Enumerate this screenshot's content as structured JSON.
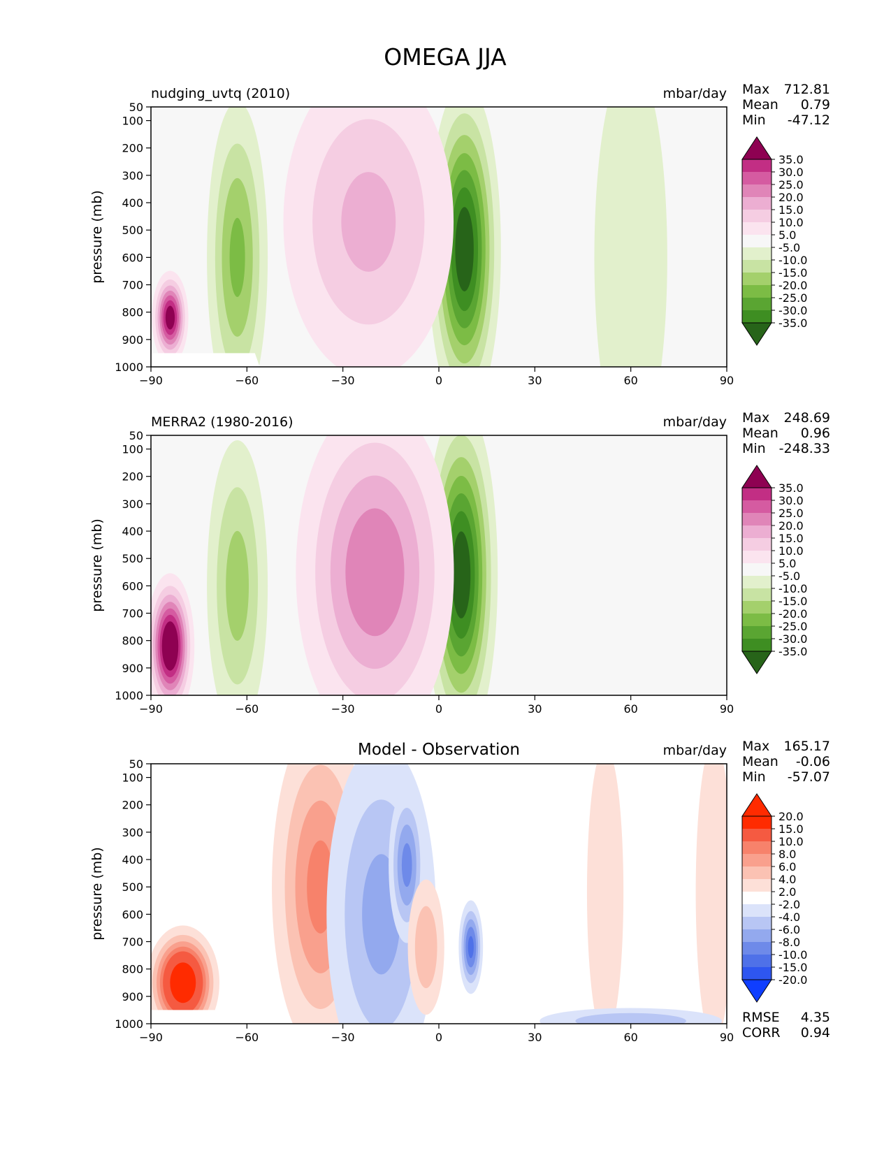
{
  "title": "OMEGA JJA",
  "x_ticks": [
    "−90",
    "−60",
    "−30",
    "0",
    "30",
    "60",
    "90"
  ],
  "y_ticks": [
    "50",
    "100",
    "200",
    "300",
    "400",
    "500",
    "600",
    "700",
    "800",
    "900",
    "1000"
  ],
  "colors": {
    "green_pink": [
      "#276419",
      "#3e8e22",
      "#5aa532",
      "#7cbc45",
      "#a4d06c",
      "#c8e3a3",
      "#e2f0cc",
      "#f7f7f7",
      "#fbe4ef",
      "#f5cde2",
      "#ecaed2",
      "#e085b8",
      "#d55ba1",
      "#c22e84",
      "#8e0152"
    ],
    "blue_red": [
      "#0f3eff",
      "#2e56f0",
      "#4f71e8",
      "#6e8ae9",
      "#93a9ee",
      "#b8c6f4",
      "#dbe3fa",
      "#ffffff",
      "#fde0d8",
      "#fbc2b3",
      "#f9a08d",
      "#f7826b",
      "#f55a41",
      "#ff2b00",
      "#ff2b00"
    ]
  },
  "chart_data": [
    {
      "type": "contour",
      "title": "nudging_uvtq (2010)",
      "units": "mbar/day",
      "xlabel": "",
      "ylabel": "pressure (mb)",
      "xlim": [
        -90,
        90
      ],
      "ylim": [
        1000,
        50
      ],
      "x_ticks": [
        -90,
        -60,
        -30,
        0,
        30,
        60,
        90
      ],
      "y_ticks": [
        50,
        100,
        200,
        300,
        400,
        500,
        600,
        700,
        800,
        900,
        1000
      ],
      "stats": {
        "max_label": "Max",
        "max": "712.81",
        "mean_label": "Mean",
        "mean": "0.79",
        "min_label": "Min",
        "min": "-47.12"
      },
      "colorbar_levels": [
        "35.0",
        "30.0",
        "25.0",
        "20.0",
        "15.0",
        "10.0",
        "5.0",
        "-5.0",
        "-10.0",
        "-15.0",
        "-20.0",
        "-25.0",
        "-30.0",
        "-35.0"
      ],
      "features": [
        {
          "lat": 8,
          "p": 570,
          "value": -40,
          "width_deg": 6,
          "depth_mb": 320
        },
        {
          "lat": -63,
          "p": 600,
          "value": -22,
          "width_deg": 5,
          "depth_mb": 300
        },
        {
          "lat": -22,
          "p": 470,
          "value": 17,
          "width_deg": 14,
          "depth_mb": 300
        },
        {
          "lat": -84,
          "p": 820,
          "value": 40,
          "width_deg": 3,
          "depth_mb": 90
        },
        {
          "lat": 60,
          "p": 600,
          "value": -7,
          "width_deg": 6,
          "depth_mb": 380
        }
      ]
    },
    {
      "type": "contour",
      "title": "MERRA2 (1980-2016)",
      "units": "mbar/day",
      "xlabel": "",
      "ylabel": "pressure (mb)",
      "xlim": [
        -90,
        90
      ],
      "ylim": [
        1000,
        50
      ],
      "x_ticks": [
        -90,
        -60,
        -30,
        0,
        30,
        60,
        90
      ],
      "y_ticks": [
        50,
        100,
        200,
        300,
        400,
        500,
        600,
        700,
        800,
        900,
        1000
      ],
      "stats": {
        "max_label": "Max",
        "max": "248.69",
        "mean_label": "Mean",
        "mean": "0.96",
        "min_label": "Min",
        "min": "-248.33"
      },
      "colorbar_levels": [
        "35.0",
        "30.0",
        "25.0",
        "20.0",
        "15.0",
        "10.0",
        "5.0",
        "-5.0",
        "-10.0",
        "-15.0",
        "-20.0",
        "-25.0",
        "-30.0",
        "-35.0"
      ],
      "features": [
        {
          "lat": 7,
          "p": 560,
          "value": -40,
          "width_deg": 6,
          "depth_mb": 330
        },
        {
          "lat": -63,
          "p": 600,
          "value": -18,
          "width_deg": 5,
          "depth_mb": 280
        },
        {
          "lat": -20,
          "p": 550,
          "value": 25,
          "width_deg": 13,
          "depth_mb": 330
        },
        {
          "lat": -84,
          "p": 820,
          "value": 45,
          "width_deg": 4,
          "depth_mb": 140
        }
      ]
    },
    {
      "type": "contour",
      "title": "Model - Observation",
      "units": "mbar/day",
      "xlabel": "",
      "ylabel": "pressure (mb)",
      "xlim": [
        -90,
        90
      ],
      "ylim": [
        1000,
        50
      ],
      "x_ticks": [
        -90,
        -60,
        -30,
        0,
        30,
        60,
        90
      ],
      "y_ticks": [
        50,
        100,
        200,
        300,
        400,
        500,
        600,
        700,
        800,
        900,
        1000
      ],
      "stats": {
        "max_label": "Max",
        "max": "165.17",
        "mean_label": "Mean",
        "mean": "-0.06",
        "min_label": "Min",
        "min": "-57.07"
      },
      "colorbar_levels": [
        "20.0",
        "15.0",
        "10.0",
        "8.0",
        "6.0",
        "4.0",
        "2.0",
        "-2.0",
        "-4.0",
        "-6.0",
        "-8.0",
        "-10.0",
        "-15.0",
        "-20.0"
      ],
      "metrics": {
        "rmse_label": "RMSE",
        "rmse": "4.35",
        "corr_label": "CORR",
        "corr": "0.94"
      },
      "features": [
        {
          "lat": -37,
          "p": 500,
          "value": 9,
          "width_deg": 8,
          "depth_mb": 320
        },
        {
          "lat": -18,
          "p": 600,
          "value": -7,
          "width_deg": 9,
          "depth_mb": 330
        },
        {
          "lat": -10,
          "p": 420,
          "value": -9,
          "width_deg": 3,
          "depth_mb": 150
        },
        {
          "lat": 10,
          "p": 720,
          "value": -11,
          "width_deg": 2,
          "depth_mb": 90
        },
        {
          "lat": -4,
          "p": 720,
          "value": 6,
          "width_deg": 3,
          "depth_mb": 130
        },
        {
          "lat": 52,
          "p": 520,
          "value": 4,
          "width_deg": 3,
          "depth_mb": 280
        },
        {
          "lat": 86,
          "p": 520,
          "value": 4,
          "width_deg": 3,
          "depth_mb": 290
        },
        {
          "lat": -80,
          "p": 850,
          "value": 20,
          "width_deg": 6,
          "depth_mb": 110
        },
        {
          "lat": 60,
          "p": 990,
          "value": -6,
          "width_deg": 15,
          "depth_mb": 25
        }
      ]
    }
  ]
}
